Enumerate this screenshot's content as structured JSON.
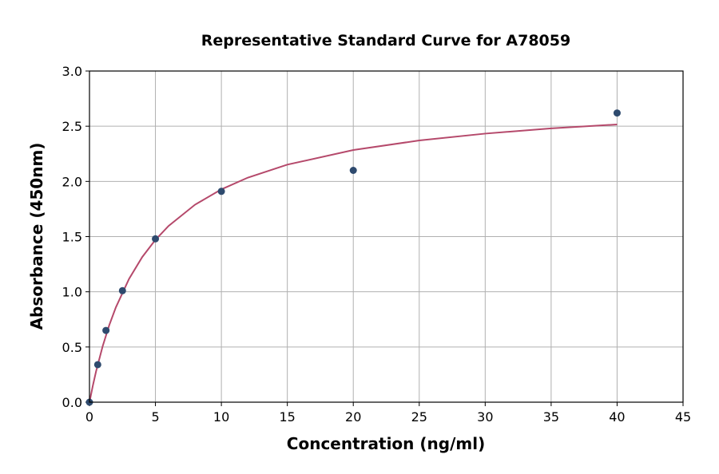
{
  "chart_data": {
    "type": "scatter",
    "title": "Representative Standard Curve for A78059",
    "xlabel": "Concentration (ng/ml)",
    "ylabel": "Absorbance (450nm)",
    "xlim": [
      0,
      45
    ],
    "ylim": [
      0,
      3.0
    ],
    "xticks": [
      "0",
      "5",
      "10",
      "15",
      "20",
      "25",
      "30",
      "35",
      "40",
      "45"
    ],
    "yticks": [
      "0.0",
      "0.5",
      "1.0",
      "1.5",
      "2.0",
      "2.5",
      "3.0"
    ],
    "grid": true,
    "points": [
      {
        "x": 0,
        "y": 0.0
      },
      {
        "x": 0.625,
        "y": 0.34
      },
      {
        "x": 1.25,
        "y": 0.65
      },
      {
        "x": 2.5,
        "y": 1.01
      },
      {
        "x": 5,
        "y": 1.48
      },
      {
        "x": 10,
        "y": 1.91
      },
      {
        "x": 20,
        "y": 2.1
      },
      {
        "x": 40,
        "y": 2.62
      }
    ],
    "fit_curve": [
      [
        0,
        0
      ],
      [
        0.25,
        0.147
      ],
      [
        0.5,
        0.279
      ],
      [
        1,
        0.507
      ],
      [
        1.5,
        0.698
      ],
      [
        2,
        0.859
      ],
      [
        3,
        1.117
      ],
      [
        4,
        1.315
      ],
      [
        5,
        1.471
      ],
      [
        6,
        1.597
      ],
      [
        8,
        1.789
      ],
      [
        10,
        1.928
      ],
      [
        12,
        2.034
      ],
      [
        15,
        2.152
      ],
      [
        20,
        2.284
      ],
      [
        25,
        2.371
      ],
      [
        30,
        2.433
      ],
      [
        35,
        2.48
      ],
      [
        40,
        2.516
      ]
    ],
    "colors": {
      "points": "#2e4a6e",
      "curve": "#b5496b",
      "grid": "#b0b0b0"
    }
  }
}
